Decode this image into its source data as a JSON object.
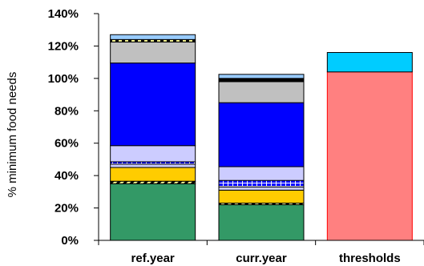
{
  "chart_data": {
    "type": "bar",
    "stacked": true,
    "ylabel": "% minimum food needs",
    "xlabel": "",
    "ylim": [
      0,
      140
    ],
    "yticks": [
      0,
      20,
      40,
      60,
      80,
      100,
      120,
      140
    ],
    "ytick_labels": [
      "0%",
      "20%",
      "40%",
      "60%",
      "80%",
      "100%",
      "120%",
      "140%"
    ],
    "tick_suffix": "%",
    "grid": false,
    "categories": [
      "ref.year",
      "curr.year",
      "thresholds"
    ],
    "series": [
      {
        "color": "#339966",
        "pattern": "solid",
        "values": [
          35,
          22,
          0
        ]
      },
      {
        "color": "#ffff99",
        "pattern": "diagonal-stripes",
        "values": [
          1.5,
          1,
          0
        ]
      },
      {
        "color": "#ffcc00",
        "pattern": "solid",
        "values": [
          8.5,
          8,
          0
        ]
      },
      {
        "color": "#ccccff",
        "pattern": "solid",
        "values": [
          2,
          2,
          0
        ]
      },
      {
        "color": "#0000ff",
        "pattern": "brick",
        "values": [
          1.5,
          4,
          0
        ]
      },
      {
        "color": "#ccccff",
        "pattern": "solid",
        "values": [
          10,
          8.5,
          0
        ]
      },
      {
        "color": "#0000ff",
        "pattern": "solid",
        "values": [
          51,
          39.5,
          0
        ]
      },
      {
        "color": "#c0c0c0",
        "pattern": "solid",
        "values": [
          13,
          13,
          0
        ]
      },
      {
        "color": "#ffff99",
        "pattern": "dashed",
        "values": [
          1.5,
          0.5,
          0
        ]
      },
      {
        "color": "#000000",
        "pattern": "solid",
        "values": [
          0,
          1.5,
          0
        ]
      },
      {
        "color": "#99ccff",
        "pattern": "solid",
        "values": [
          3,
          2.5,
          0
        ]
      },
      {
        "color": "#ff8080",
        "pattern": "solid",
        "border": "#ff0000",
        "values": [
          0,
          0,
          104
        ]
      },
      {
        "color": "#00ccff",
        "pattern": "solid",
        "values": [
          0,
          0,
          12
        ]
      }
    ]
  }
}
